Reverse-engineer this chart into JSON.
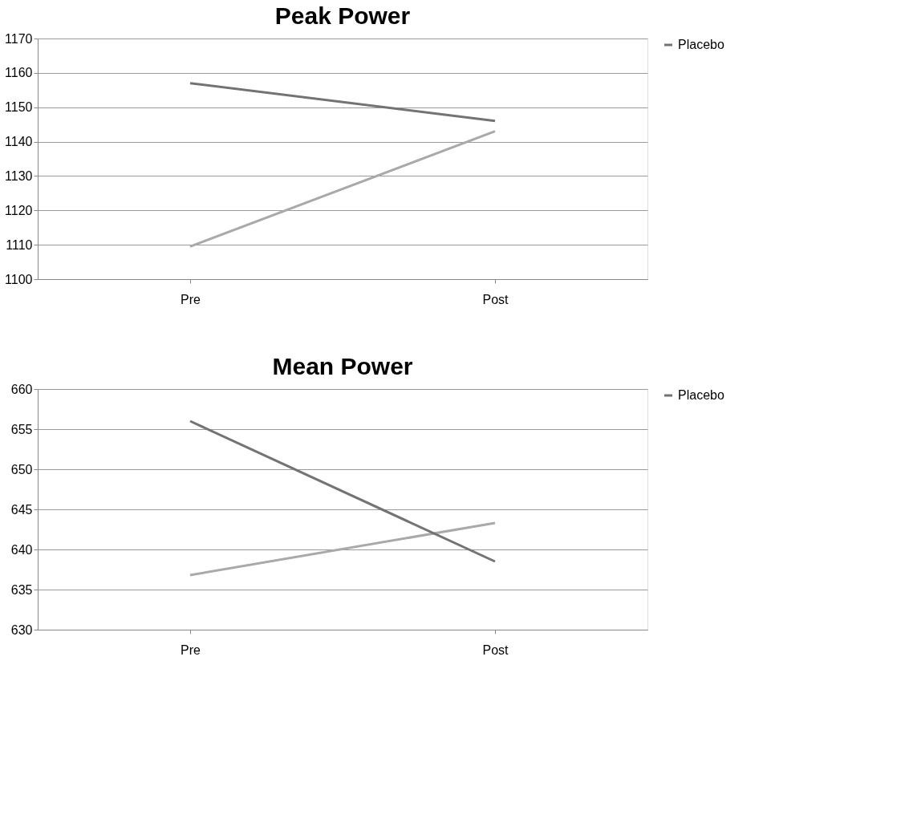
{
  "chart_data": [
    {
      "type": "line",
      "title": "Peak Power",
      "categories": [
        "Pre",
        "Post"
      ],
      "series": [
        {
          "name": null,
          "color": "#a9a9a9",
          "values": [
            1109.5,
            1143
          ]
        },
        {
          "name": "Placebo",
          "color": "#737373",
          "values": [
            1157,
            1146
          ]
        }
      ],
      "ylim": [
        1100,
        1170
      ],
      "yticks": [
        1100,
        1110,
        1120,
        1130,
        1140,
        1150,
        1160,
        1170
      ],
      "grid": "y",
      "legend": "right",
      "marker": "none",
      "line_style": "solid"
    },
    {
      "type": "line",
      "title": "Mean Power",
      "categories": [
        "Pre",
        "Post"
      ],
      "series": [
        {
          "name": null,
          "color": "#a9a9a9",
          "values": [
            636.8,
            643.3
          ]
        },
        {
          "name": "Placebo",
          "color": "#737373",
          "values": [
            656,
            638.5
          ]
        }
      ],
      "ylim": [
        630,
        660
      ],
      "yticks": [
        630,
        635,
        640,
        645,
        650,
        655,
        660
      ],
      "grid": "y",
      "legend": "right",
      "marker": "none",
      "line_style": "solid"
    }
  ]
}
